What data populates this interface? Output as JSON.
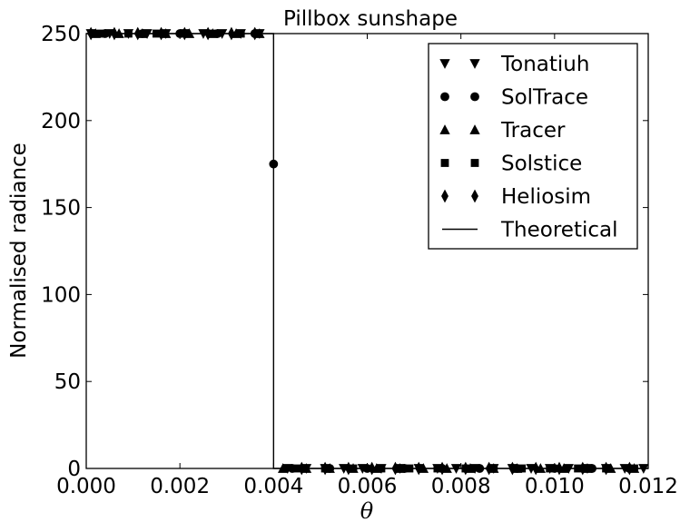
{
  "chart_data": {
    "type": "scatter",
    "title": "Pillbox sunshape",
    "xlabel": "θ",
    "ylabel": "Normalised radiance",
    "xlim": [
      0.0,
      0.012
    ],
    "ylim": [
      0,
      250
    ],
    "xticks": [
      "0.000",
      "0.002",
      "0.004",
      "0.006",
      "0.008",
      "0.010",
      "0.012"
    ],
    "yticks": [
      "0",
      "50",
      "100",
      "150",
      "200",
      "250"
    ],
    "grid": false,
    "legend_position": "top-right",
    "series": [
      {
        "name": "Tonatiuh",
        "marker": "triangle-down",
        "x": [
          0.0001,
          0.0005,
          0.0009,
          0.0013,
          0.0017,
          0.0021,
          0.0025,
          0.0029,
          0.0033,
          0.0037,
          0.0043,
          0.0047,
          0.0051,
          0.0055,
          0.0059,
          0.0063,
          0.0067,
          0.0071,
          0.0075,
          0.0079,
          0.0083,
          0.0087,
          0.0091,
          0.0095,
          0.0099,
          0.0103,
          0.0107,
          0.0111,
          0.0115,
          0.0119
        ],
        "y": [
          250,
          250,
          250,
          250,
          250,
          250,
          250,
          250,
          250,
          250,
          0,
          0,
          0,
          0,
          0,
          0,
          0,
          0,
          0,
          0,
          0,
          0,
          0,
          0,
          0,
          0,
          0,
          0,
          0,
          0
        ]
      },
      {
        "name": "SolTrace",
        "marker": "circle",
        "x": [
          0.0004,
          0.0012,
          0.002,
          0.0028,
          0.0036,
          0.004,
          0.0044,
          0.0052,
          0.006,
          0.0068,
          0.0076,
          0.0084,
          0.0092,
          0.01,
          0.0108,
          0.0116
        ],
        "y": [
          250,
          250,
          250,
          250,
          250,
          175,
          0,
          0,
          0,
          0,
          0,
          0,
          0,
          0,
          0,
          0
        ]
      },
      {
        "name": "Tracer",
        "marker": "triangle-up",
        "x": [
          0.0002,
          0.0007,
          0.0012,
          0.0017,
          0.0022,
          0.0027,
          0.0032,
          0.0037,
          0.0042,
          0.0047,
          0.0052,
          0.0057,
          0.0062,
          0.0067,
          0.0072,
          0.0077,
          0.0082,
          0.0087,
          0.0092,
          0.0097,
          0.0102,
          0.0107,
          0.0112,
          0.0117
        ],
        "y": [
          250,
          250,
          250,
          250,
          250,
          250,
          250,
          250,
          0,
          0,
          0,
          0,
          0,
          0,
          0,
          0,
          0,
          0,
          0,
          0,
          0,
          0,
          0,
          0
        ]
      },
      {
        "name": "Solstice",
        "marker": "square",
        "x": [
          0.0003,
          0.0009,
          0.0015,
          0.0021,
          0.0027,
          0.0033,
          0.0045,
          0.0051,
          0.0057,
          0.0063,
          0.0069,
          0.0075,
          0.0081,
          0.0087,
          0.0093,
          0.0099,
          0.0105,
          0.0111,
          0.0117
        ],
        "y": [
          250,
          250,
          250,
          250,
          250,
          250,
          0,
          0,
          0,
          0,
          0,
          0,
          0,
          0,
          0,
          0,
          0,
          0,
          0
        ]
      },
      {
        "name": "Heliosim",
        "marker": "thin-diamond",
        "x": [
          0.0001,
          0.0006,
          0.0011,
          0.0016,
          0.0021,
          0.0026,
          0.0031,
          0.0036,
          0.0046,
          0.0051,
          0.0056,
          0.0061,
          0.0066,
          0.0071,
          0.0076,
          0.0081,
          0.0086,
          0.0091,
          0.0096,
          0.0101,
          0.0106,
          0.0111,
          0.0116
        ],
        "y": [
          250,
          250,
          250,
          250,
          250,
          250,
          250,
          250,
          0,
          0,
          0,
          0,
          0,
          0,
          0,
          0,
          0,
          0,
          0,
          0,
          0,
          0,
          0
        ]
      },
      {
        "name": "Theoretical",
        "marker": "line",
        "x": [
          0.0,
          0.004,
          0.004,
          0.012
        ],
        "y": [
          250,
          250,
          0,
          0
        ]
      }
    ]
  }
}
